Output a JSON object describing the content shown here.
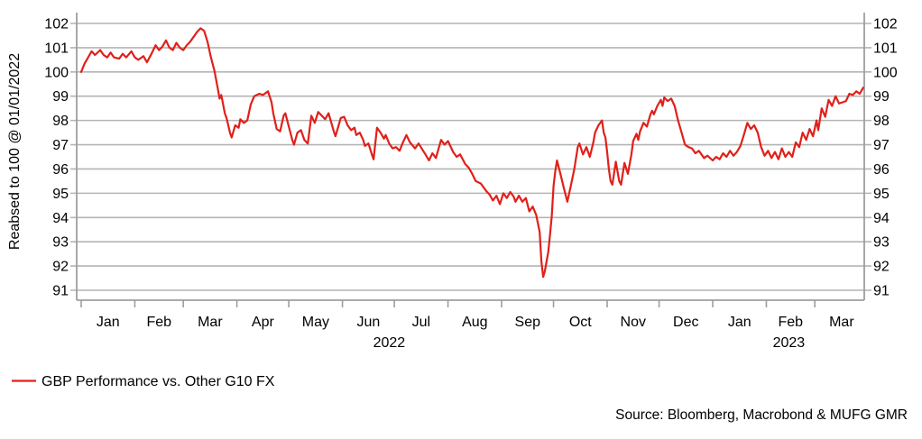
{
  "chart_data": {
    "type": "line",
    "title": "",
    "ylabel": "Reabsed to 100 @ 01/01/2022",
    "ylim": [
      91,
      102
    ],
    "y_ticks": [
      91,
      92,
      93,
      94,
      95,
      96,
      97,
      98,
      99,
      100,
      101,
      102
    ],
    "grid": "horizontal",
    "legend_position": "bottom-left",
    "x_axis": {
      "unit": "days since 2022-01-01",
      "month_labels": [
        "Jan",
        "Feb",
        "Mar",
        "Apr",
        "May",
        "Jun",
        "Jul",
        "Aug",
        "Sep",
        "Oct",
        "Nov",
        "Dec",
        "Jan",
        "Feb",
        "Mar"
      ],
      "month_boundary_days": [
        0,
        31,
        59,
        90,
        120,
        151,
        181,
        212,
        243,
        273,
        304,
        334,
        365,
        396,
        424,
        455
      ],
      "year_labels": [
        {
          "text": "2022",
          "day": 178
        },
        {
          "text": "2023",
          "day": 409
        }
      ]
    },
    "series": [
      {
        "name": "GBP Performance vs. Other G10 FX",
        "color": "#e0201a",
        "points": [
          [
            0,
            100.0
          ],
          [
            2,
            100.35
          ],
          [
            4,
            100.6
          ],
          [
            6,
            100.85
          ],
          [
            8,
            100.7
          ],
          [
            11,
            100.9
          ],
          [
            13,
            100.7
          ],
          [
            15,
            100.6
          ],
          [
            17,
            100.8
          ],
          [
            19,
            100.6
          ],
          [
            22,
            100.55
          ],
          [
            24,
            100.75
          ],
          [
            26,
            100.6
          ],
          [
            29,
            100.85
          ],
          [
            31,
            100.6
          ],
          [
            33,
            100.5
          ],
          [
            36,
            100.65
          ],
          [
            38,
            100.4
          ],
          [
            41,
            100.8
          ],
          [
            43,
            101.1
          ],
          [
            45,
            100.9
          ],
          [
            47,
            101.05
          ],
          [
            49,
            101.3
          ],
          [
            51,
            101.0
          ],
          [
            53,
            100.9
          ],
          [
            55,
            101.2
          ],
          [
            57,
            101.0
          ],
          [
            59,
            100.9
          ],
          [
            61,
            101.1
          ],
          [
            63,
            101.25
          ],
          [
            65,
            101.45
          ],
          [
            67,
            101.65
          ],
          [
            69,
            101.8
          ],
          [
            71,
            101.7
          ],
          [
            73,
            101.25
          ],
          [
            75,
            100.6
          ],
          [
            77,
            100.05
          ],
          [
            79,
            99.3
          ],
          [
            80,
            98.9
          ],
          [
            81,
            99.05
          ],
          [
            83,
            98.3
          ],
          [
            84,
            98.1
          ],
          [
            86,
            97.5
          ],
          [
            87,
            97.3
          ],
          [
            89,
            97.8
          ],
          [
            91,
            97.7
          ],
          [
            92,
            98.05
          ],
          [
            94,
            97.9
          ],
          [
            96,
            98.0
          ],
          [
            98,
            98.65
          ],
          [
            100,
            99.0
          ],
          [
            103,
            99.1
          ],
          [
            105,
            99.05
          ],
          [
            108,
            99.2
          ],
          [
            110,
            98.75
          ],
          [
            111,
            98.3
          ],
          [
            113,
            97.65
          ],
          [
            115,
            97.55
          ],
          [
            117,
            98.2
          ],
          [
            118,
            98.3
          ],
          [
            120,
            97.75
          ],
          [
            122,
            97.2
          ],
          [
            123,
            97.0
          ],
          [
            125,
            97.5
          ],
          [
            127,
            97.6
          ],
          [
            129,
            97.2
          ],
          [
            131,
            97.05
          ],
          [
            133,
            98.2
          ],
          [
            135,
            97.9
          ],
          [
            137,
            98.35
          ],
          [
            139,
            98.2
          ],
          [
            141,
            98.05
          ],
          [
            143,
            98.3
          ],
          [
            146,
            97.55
          ],
          [
            147,
            97.35
          ],
          [
            150,
            98.1
          ],
          [
            152,
            98.15
          ],
          [
            154,
            97.8
          ],
          [
            156,
            97.6
          ],
          [
            158,
            97.7
          ],
          [
            159,
            97.4
          ],
          [
            161,
            97.5
          ],
          [
            163,
            97.2
          ],
          [
            164,
            96.95
          ],
          [
            166,
            97.05
          ],
          [
            168,
            96.6
          ],
          [
            169,
            96.4
          ],
          [
            171,
            97.7
          ],
          [
            173,
            97.5
          ],
          [
            175,
            97.25
          ],
          [
            176,
            97.4
          ],
          [
            178,
            97.05
          ],
          [
            180,
            96.85
          ],
          [
            182,
            96.9
          ],
          [
            184,
            96.75
          ],
          [
            186,
            97.1
          ],
          [
            188,
            97.4
          ],
          [
            190,
            97.1
          ],
          [
            193,
            96.85
          ],
          [
            195,
            97.05
          ],
          [
            199,
            96.6
          ],
          [
            201,
            96.35
          ],
          [
            203,
            96.65
          ],
          [
            205,
            96.45
          ],
          [
            208,
            97.2
          ],
          [
            210,
            97.0
          ],
          [
            212,
            97.15
          ],
          [
            215,
            96.7
          ],
          [
            217,
            96.5
          ],
          [
            219,
            96.6
          ],
          [
            222,
            96.2
          ],
          [
            224,
            96.05
          ],
          [
            226,
            95.8
          ],
          [
            228,
            95.5
          ],
          [
            231,
            95.4
          ],
          [
            234,
            95.1
          ],
          [
            236,
            94.95
          ],
          [
            238,
            94.7
          ],
          [
            240,
            94.9
          ],
          [
            242,
            94.55
          ],
          [
            244,
            95.0
          ],
          [
            246,
            94.8
          ],
          [
            248,
            95.05
          ],
          [
            250,
            94.85
          ],
          [
            251,
            94.65
          ],
          [
            253,
            94.9
          ],
          [
            255,
            94.65
          ],
          [
            257,
            94.8
          ],
          [
            259,
            94.25
          ],
          [
            261,
            94.45
          ],
          [
            263,
            94.1
          ],
          [
            265,
            93.4
          ],
          [
            266,
            92.2
          ],
          [
            267,
            91.55
          ],
          [
            268,
            91.8
          ],
          [
            270,
            92.6
          ],
          [
            271,
            93.3
          ],
          [
            272,
            94.05
          ],
          [
            273,
            95.3
          ],
          [
            274,
            95.9
          ],
          [
            275,
            96.35
          ],
          [
            277,
            95.8
          ],
          [
            279,
            95.2
          ],
          [
            281,
            94.65
          ],
          [
            283,
            95.3
          ],
          [
            285,
            96.0
          ],
          [
            287,
            96.9
          ],
          [
            288,
            97.05
          ],
          [
            290,
            96.6
          ],
          [
            292,
            96.9
          ],
          [
            294,
            96.5
          ],
          [
            296,
            97.1
          ],
          [
            297,
            97.5
          ],
          [
            299,
            97.8
          ],
          [
            301,
            98.0
          ],
          [
            302,
            97.5
          ],
          [
            303,
            97.3
          ],
          [
            304,
            96.7
          ],
          [
            305,
            96.0
          ],
          [
            306,
            95.5
          ],
          [
            307,
            95.35
          ],
          [
            309,
            96.3
          ],
          [
            311,
            95.5
          ],
          [
            312,
            95.35
          ],
          [
            314,
            96.25
          ],
          [
            316,
            95.8
          ],
          [
            318,
            96.6
          ],
          [
            319,
            97.15
          ],
          [
            321,
            97.45
          ],
          [
            322,
            97.2
          ],
          [
            323,
            97.55
          ],
          [
            325,
            97.9
          ],
          [
            327,
            97.75
          ],
          [
            329,
            98.25
          ],
          [
            330,
            98.4
          ],
          [
            331,
            98.25
          ],
          [
            333,
            98.6
          ],
          [
            335,
            98.85
          ],
          [
            336,
            98.6
          ],
          [
            337,
            98.95
          ],
          [
            339,
            98.8
          ],
          [
            341,
            98.9
          ],
          [
            343,
            98.6
          ],
          [
            345,
            98.0
          ],
          [
            347,
            97.5
          ],
          [
            349,
            97.0
          ],
          [
            351,
            96.9
          ],
          [
            353,
            96.85
          ],
          [
            355,
            96.65
          ],
          [
            357,
            96.75
          ],
          [
            360,
            96.45
          ],
          [
            362,
            96.55
          ],
          [
            365,
            96.35
          ],
          [
            367,
            96.5
          ],
          [
            369,
            96.4
          ],
          [
            371,
            96.65
          ],
          [
            373,
            96.5
          ],
          [
            375,
            96.75
          ],
          [
            377,
            96.55
          ],
          [
            379,
            96.7
          ],
          [
            381,
            96.95
          ],
          [
            383,
            97.4
          ],
          [
            385,
            97.9
          ],
          [
            387,
            97.65
          ],
          [
            389,
            97.8
          ],
          [
            391,
            97.5
          ],
          [
            393,
            96.9
          ],
          [
            395,
            96.55
          ],
          [
            397,
            96.75
          ],
          [
            399,
            96.45
          ],
          [
            401,
            96.7
          ],
          [
            403,
            96.4
          ],
          [
            405,
            96.85
          ],
          [
            407,
            96.5
          ],
          [
            409,
            96.7
          ],
          [
            411,
            96.5
          ],
          [
            413,
            97.1
          ],
          [
            415,
            96.9
          ],
          [
            417,
            97.5
          ],
          [
            419,
            97.2
          ],
          [
            421,
            97.65
          ],
          [
            423,
            97.35
          ],
          [
            425,
            98.0
          ],
          [
            426,
            97.6
          ],
          [
            428,
            98.5
          ],
          [
            430,
            98.15
          ],
          [
            432,
            98.85
          ],
          [
            434,
            98.6
          ],
          [
            436,
            99.0
          ],
          [
            438,
            98.7
          ],
          [
            440,
            98.75
          ],
          [
            442,
            98.8
          ],
          [
            444,
            99.1
          ],
          [
            446,
            99.05
          ],
          [
            448,
            99.2
          ],
          [
            450,
            99.1
          ],
          [
            452,
            99.35
          ]
        ]
      }
    ]
  },
  "legend": {
    "label": "GBP Performance vs. Other G10 FX",
    "color": "#e0201a"
  },
  "source": "Source: Bloomberg, Macrobond & MUFG GMR",
  "colors": {
    "line_red": "#e0201a",
    "gridline_gray": "#b4b4b4",
    "axis_gray": "#9e9e9e",
    "text_black": "#000000"
  }
}
